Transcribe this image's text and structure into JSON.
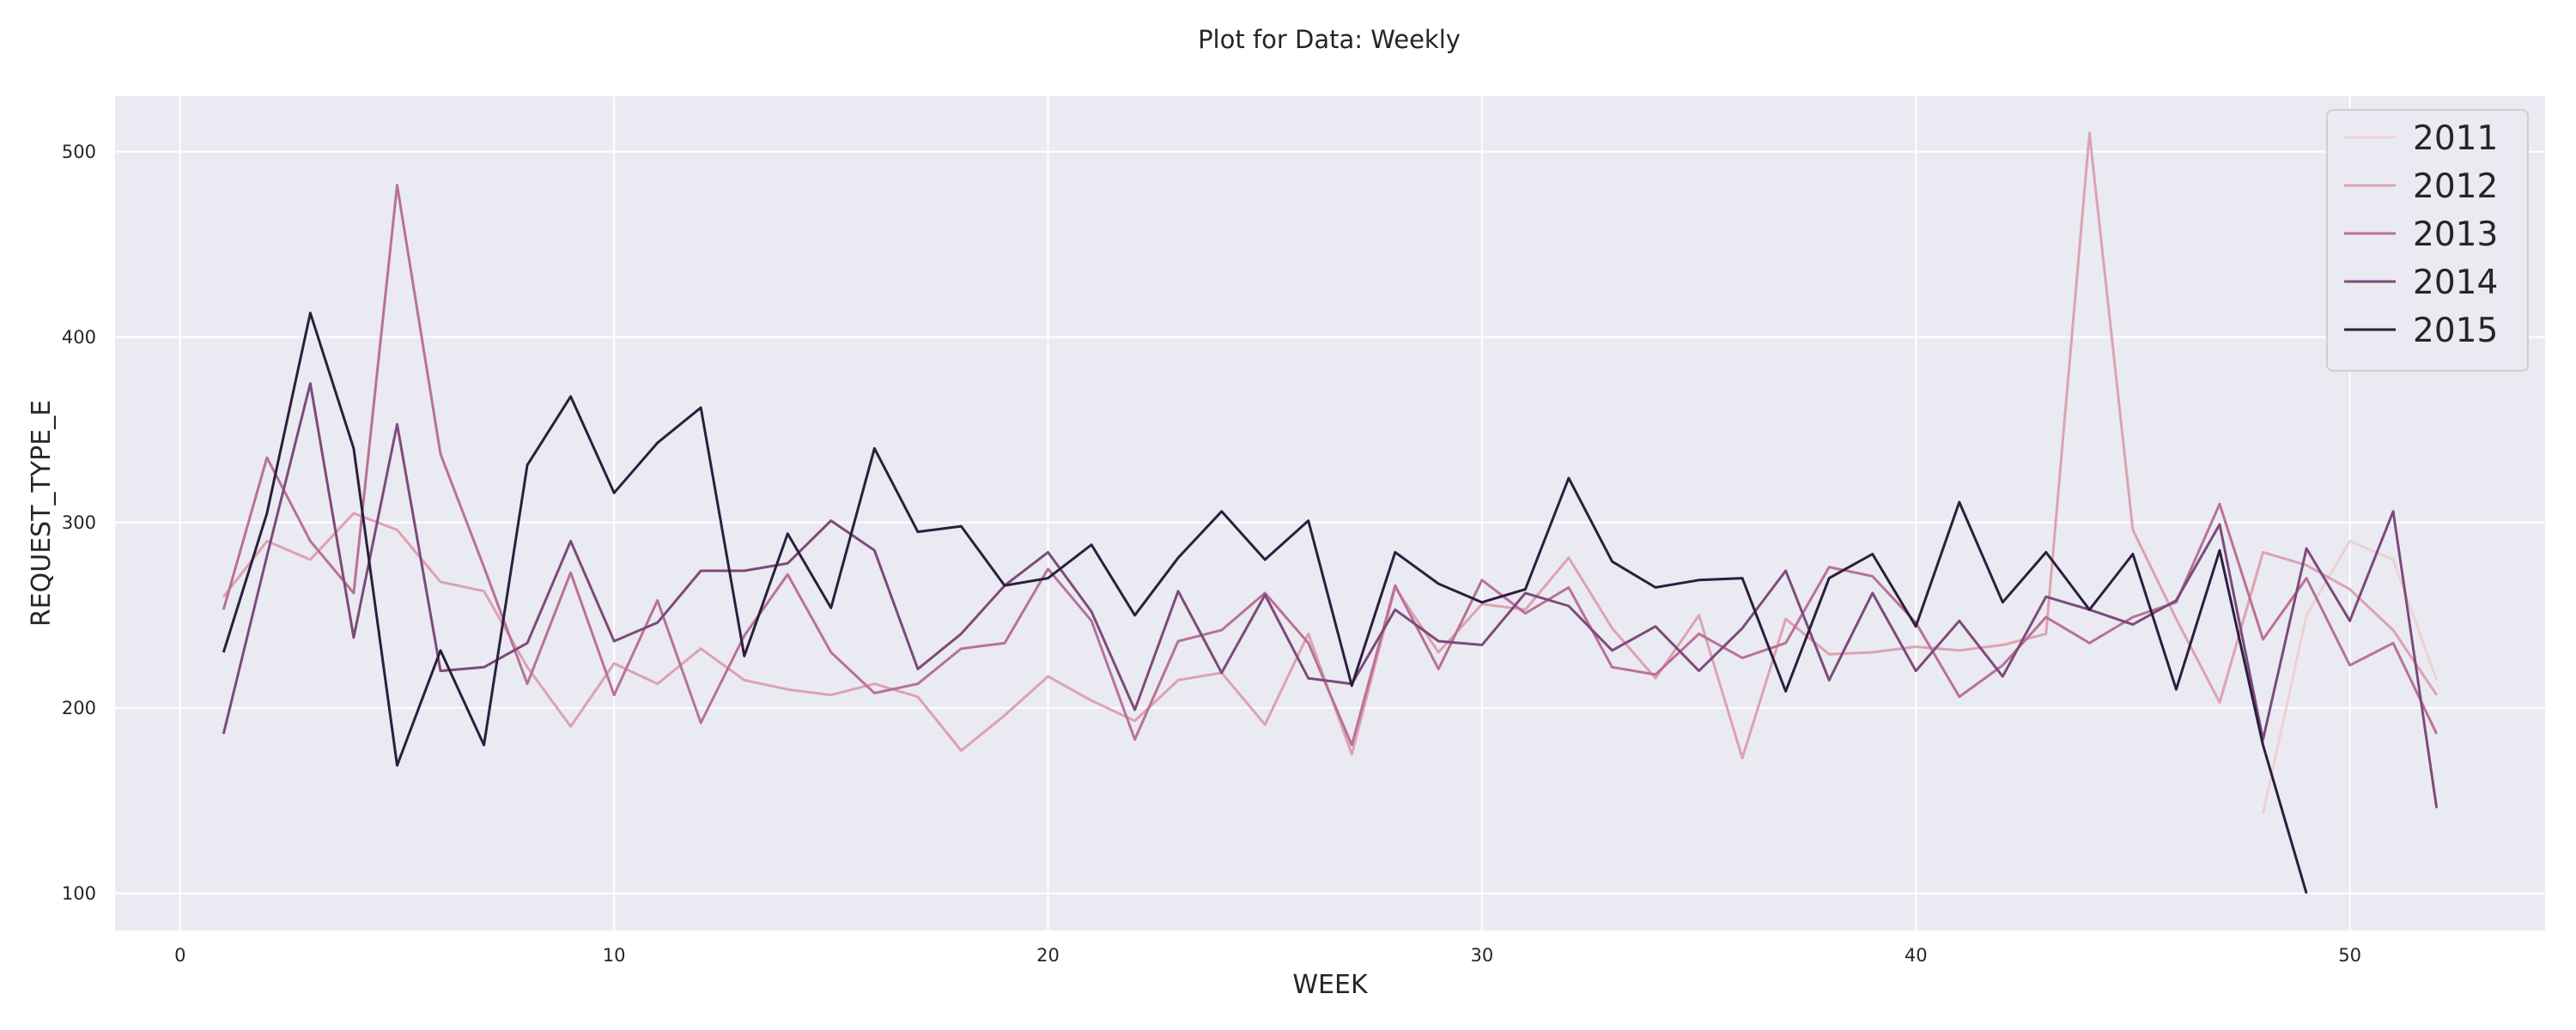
{
  "chart_data": {
    "type": "line",
    "title": "Plot for Data: Weekly",
    "xlabel": "WEEK",
    "ylabel": "REQUEST_TYPE_E",
    "xlim": [
      -1.5,
      54.5
    ],
    "ylim": [
      80,
      530
    ],
    "xticks": [
      0,
      10,
      20,
      30,
      40,
      50
    ],
    "yticks": [
      100,
      200,
      300,
      400,
      500
    ],
    "grid": true,
    "legend": "top-right",
    "series": [
      {
        "name": "2011",
        "color": "#efd1d2",
        "x": [
          48,
          49,
          50,
          51,
          52
        ],
        "y": [
          143,
          250,
          290,
          280,
          215
        ]
      },
      {
        "name": "2012",
        "color": "#dda2b0",
        "x": [
          1,
          2,
          3,
          4,
          5,
          6,
          7,
          8,
          9,
          10,
          11,
          12,
          13,
          14,
          15,
          16,
          17,
          18,
          19,
          20,
          21,
          22,
          23,
          24,
          25,
          26,
          27,
          28,
          29,
          30,
          31,
          32,
          33,
          34,
          35,
          36,
          37,
          38,
          39,
          40,
          41,
          42,
          43,
          44,
          45,
          46,
          47,
          48,
          49,
          50,
          51,
          52
        ],
        "y": [
          260,
          290,
          280,
          305,
          296,
          268,
          263,
          222,
          190,
          224,
          213,
          232,
          215,
          210,
          207,
          213,
          206,
          177,
          196,
          217,
          204,
          193,
          215,
          219,
          191,
          240,
          175,
          265,
          230,
          256,
          253,
          281,
          243,
          216,
          250,
          173,
          248,
          229,
          230,
          233,
          231,
          234,
          240,
          510,
          296,
          248,
          203,
          284,
          277,
          264,
          242,
          207
        ]
      },
      {
        "name": "2013",
        "color": "#b97198",
        "x": [
          1,
          2,
          3,
          4,
          5,
          6,
          7,
          8,
          9,
          10,
          11,
          12,
          13,
          14,
          15,
          16,
          17,
          18,
          19,
          20,
          21,
          22,
          23,
          24,
          25,
          26,
          27,
          28,
          29,
          30,
          31,
          32,
          33,
          34,
          35,
          36,
          37,
          38,
          39,
          40,
          41,
          42,
          43,
          44,
          45,
          46,
          47,
          48,
          49,
          50,
          51,
          52
        ],
        "y": [
          253,
          335,
          290,
          262,
          482,
          337,
          276,
          213,
          273,
          207,
          258,
          192,
          239,
          272,
          230,
          208,
          213,
          232,
          235,
          275,
          247,
          183,
          236,
          242,
          262,
          235,
          180,
          266,
          221,
          269,
          251,
          265,
          222,
          218,
          240,
          227,
          235,
          276,
          271,
          246,
          206,
          223,
          249,
          235,
          249,
          257,
          310,
          237,
          270,
          223,
          235,
          186
        ]
      },
      {
        "name": "2014",
        "color": "#7e4a7c",
        "x": [
          1,
          2,
          3,
          4,
          5,
          6,
          7,
          8,
          9,
          10,
          11,
          12,
          13,
          14,
          15,
          16,
          17,
          18,
          19,
          20,
          21,
          22,
          23,
          24,
          25,
          26,
          27,
          28,
          29,
          30,
          31,
          32,
          33,
          34,
          35,
          36,
          37,
          38,
          39,
          40,
          41,
          42,
          43,
          44,
          45,
          46,
          47,
          48,
          49,
          50,
          51,
          52
        ],
        "y": [
          186,
          282,
          375,
          238,
          353,
          220,
          222,
          235,
          290,
          236,
          246,
          274,
          274,
          278,
          301,
          285,
          221,
          240,
          266,
          284,
          252,
          199,
          263,
          219,
          261,
          216,
          213,
          253,
          236,
          234,
          262,
          255,
          231,
          244,
          220,
          243,
          274,
          215,
          262,
          220,
          247,
          217,
          260,
          253,
          245,
          258,
          299,
          183,
          286,
          247,
          306,
          146
        ]
      },
      {
        "name": "2015",
        "color": "#2d1e3e",
        "x": [
          1,
          2,
          3,
          4,
          5,
          6,
          7,
          8,
          9,
          10,
          11,
          12,
          13,
          14,
          15,
          16,
          17,
          18,
          19,
          20,
          21,
          22,
          23,
          24,
          25,
          26,
          27,
          28,
          29,
          30,
          31,
          32,
          33,
          34,
          35,
          36,
          37,
          38,
          39,
          40,
          41,
          42,
          43,
          44,
          45,
          46,
          47,
          48,
          49
        ],
        "y": [
          230,
          305,
          413,
          340,
          169,
          231,
          180,
          331,
          368,
          316,
          343,
          362,
          228,
          294,
          254,
          340,
          295,
          298,
          266,
          270,
          288,
          250,
          281,
          306,
          280,
          301,
          212,
          284,
          267,
          257,
          264,
          324,
          279,
          265,
          269,
          270,
          209,
          270,
          283,
          244,
          311,
          257,
          284,
          253,
          283,
          210,
          285,
          180,
          100
        ]
      }
    ]
  }
}
